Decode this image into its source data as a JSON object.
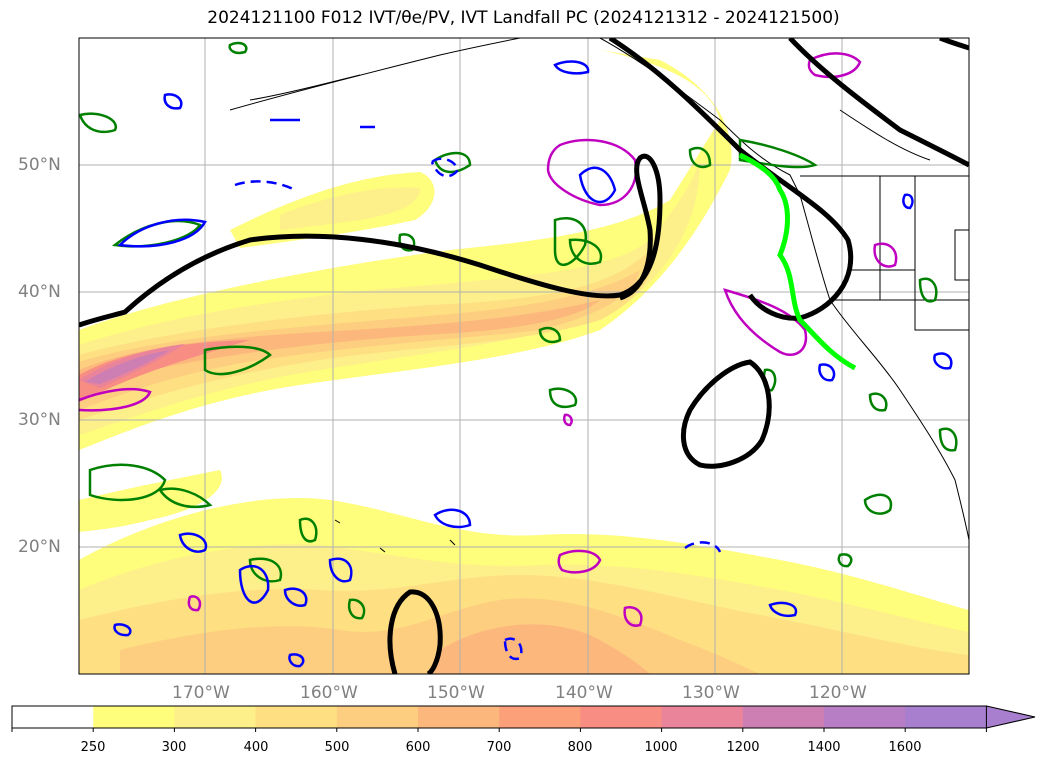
{
  "title": "2024121100 F012 IVT/θe/PV, IVT Landfall PC (2024121312 - 2024121500)",
  "map": {
    "lat_labels": [
      "50°N",
      "40°N",
      "30°N",
      "20°N"
    ],
    "lon_labels": [
      "170°W",
      "160°W",
      "150°W",
      "140°W",
      "130°W",
      "120°W"
    ],
    "fill_colors": [
      "#ffffff",
      "#fefd7c",
      "#fdef8a",
      "#fedf82",
      "#fdcd80",
      "#fcb87c",
      "#fca07a",
      "#f88d84",
      "#e9849a",
      "#cd7fb3",
      "#b87ec5",
      "#a87ecf"
    ]
  },
  "colorbar": {
    "ticks": [
      "250",
      "300",
      "400",
      "500",
      "600",
      "700",
      "800",
      "1000",
      "1200",
      "1400",
      "1600"
    ],
    "colors": [
      "#ffffff",
      "#fefd7c",
      "#fdef8a",
      "#fedf82",
      "#fdcd80",
      "#fcb87c",
      "#fca07a",
      "#f88d84",
      "#e9849a",
      "#cd7fb3",
      "#b87ec5",
      "#a87ecf"
    ]
  }
}
